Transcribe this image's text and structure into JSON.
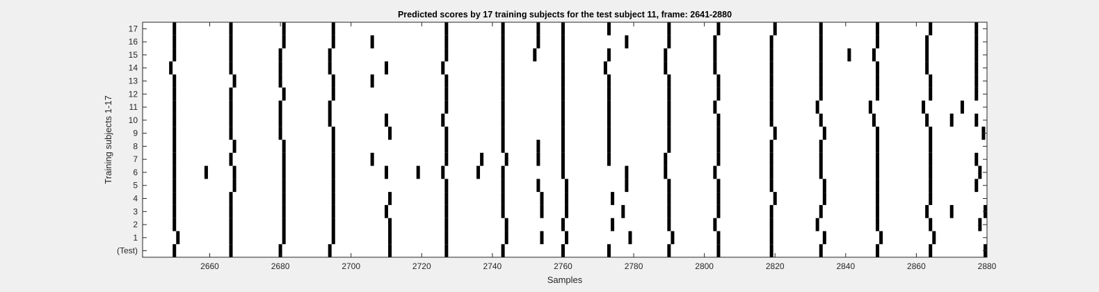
{
  "chart_data": {
    "type": "scatter",
    "title": "Predicted scores by 17 training subjects for the test subject 11, frame: 2641-2880",
    "xlabel": "Samples",
    "ylabel": "Training subjects 1-17",
    "xlim": [
      2641,
      2880
    ],
    "x_ticks": [
      2660,
      2680,
      2700,
      2720,
      2740,
      2760,
      2780,
      2800,
      2820,
      2840,
      2860,
      2880
    ],
    "y_tick_labels": [
      "(Test)",
      "1",
      "2",
      "3",
      "4",
      "5",
      "6",
      "7",
      "8",
      "9",
      "10",
      "11",
      "12",
      "13",
      "14",
      "15",
      "16",
      "17"
    ],
    "grid": false,
    "legend": "none",
    "colors": {
      "mark": "#000000",
      "plot_bg": "#ffffff",
      "figure_bg": "#f0f0f0",
      "axis": "#262626"
    },
    "rows": [
      {
        "label": "(Test)",
        "x": [
          2650,
          2666,
          2680,
          2694,
          2711,
          2727,
          2743,
          2760,
          2773,
          2790,
          2804,
          2819,
          2833,
          2849,
          2864,
          2880
        ]
      },
      {
        "label": "1",
        "x": [
          2651,
          2666,
          2681,
          2695,
          2711,
          2727,
          2744,
          2754,
          2761,
          2779,
          2791,
          2804,
          2819,
          2834,
          2850,
          2865
        ]
      },
      {
        "label": "2",
        "x": [
          2650,
          2666,
          2681,
          2695,
          2711,
          2727,
          2744,
          2760,
          2774,
          2790,
          2803,
          2819,
          2832,
          2849,
          2864,
          2878
        ]
      },
      {
        "label": "3",
        "x": [
          2650,
          2666,
          2681,
          2695,
          2710,
          2727,
          2743,
          2754,
          2761,
          2777,
          2790,
          2804,
          2819,
          2833,
          2849,
          2863,
          2870,
          2880
        ]
      },
      {
        "label": "4",
        "x": [
          2650,
          2666,
          2681,
          2695,
          2711,
          2727,
          2743,
          2754,
          2761,
          2774,
          2790,
          2804,
          2820,
          2834,
          2849,
          2864
        ]
      },
      {
        "label": "5",
        "x": [
          2650,
          2667,
          2681,
          2695,
          2727,
          2743,
          2753,
          2761,
          2778,
          2790,
          2804,
          2819,
          2834,
          2849,
          2864,
          2877
        ]
      },
      {
        "label": "6",
        "x": [
          2650,
          2659,
          2667,
          2681,
          2695,
          2710,
          2719,
          2726,
          2736,
          2743,
          2760,
          2778,
          2789,
          2803,
          2819,
          2833,
          2849,
          2864,
          2878
        ]
      },
      {
        "label": "7",
        "x": [
          2650,
          2666,
          2681,
          2695,
          2706,
          2727,
          2737,
          2744,
          2753,
          2760,
          2773,
          2789,
          2804,
          2819,
          2833,
          2849,
          2864,
          2877
        ]
      },
      {
        "label": "8",
        "x": [
          2650,
          2667,
          2681,
          2695,
          2727,
          2743,
          2753,
          2760,
          2773,
          2790,
          2804,
          2819,
          2833,
          2849,
          2864
        ]
      },
      {
        "label": "9",
        "x": [
          2650,
          2666,
          2680,
          2695,
          2711,
          2727,
          2743,
          2760,
          2773,
          2790,
          2804,
          2820,
          2834,
          2849,
          2864,
          2879
        ]
      },
      {
        "label": "10",
        "x": [
          2650,
          2666,
          2680,
          2694,
          2710,
          2726,
          2743,
          2760,
          2773,
          2790,
          2804,
          2819,
          2833,
          2848,
          2863,
          2870,
          2877
        ]
      },
      {
        "label": "11",
        "x": [
          2650,
          2666,
          2680,
          2694,
          2727,
          2743,
          2760,
          2773,
          2790,
          2803,
          2819,
          2832,
          2847,
          2862,
          2873
        ]
      },
      {
        "label": "12",
        "x": [
          2650,
          2666,
          2681,
          2695,
          2727,
          2743,
          2760,
          2773,
          2790,
          2804,
          2819,
          2833,
          2849,
          2864,
          2877
        ]
      },
      {
        "label": "13",
        "x": [
          2650,
          2667,
          2680,
          2695,
          2706,
          2727,
          2743,
          2760,
          2773,
          2790,
          2804,
          2819,
          2833,
          2849,
          2864,
          2877
        ]
      },
      {
        "label": "14",
        "x": [
          2649,
          2666,
          2680,
          2694,
          2710,
          2726,
          2743,
          2760,
          2772,
          2789,
          2803,
          2819,
          2833,
          2849,
          2863,
          2877
        ]
      },
      {
        "label": "15",
        "x": [
          2650,
          2666,
          2680,
          2694,
          2727,
          2743,
          2752,
          2760,
          2773,
          2789,
          2803,
          2819,
          2833,
          2841,
          2848,
          2863,
          2877
        ]
      },
      {
        "label": "16",
        "x": [
          2650,
          2666,
          2681,
          2695,
          2706,
          2727,
          2743,
          2753,
          2760,
          2778,
          2790,
          2803,
          2819,
          2833,
          2849,
          2863,
          2877
        ]
      },
      {
        "label": "17",
        "x": [
          2650,
          2666,
          2681,
          2695,
          2727,
          2743,
          2753,
          2760,
          2773,
          2790,
          2804,
          2820,
          2833,
          2849,
          2864,
          2877
        ]
      }
    ]
  }
}
